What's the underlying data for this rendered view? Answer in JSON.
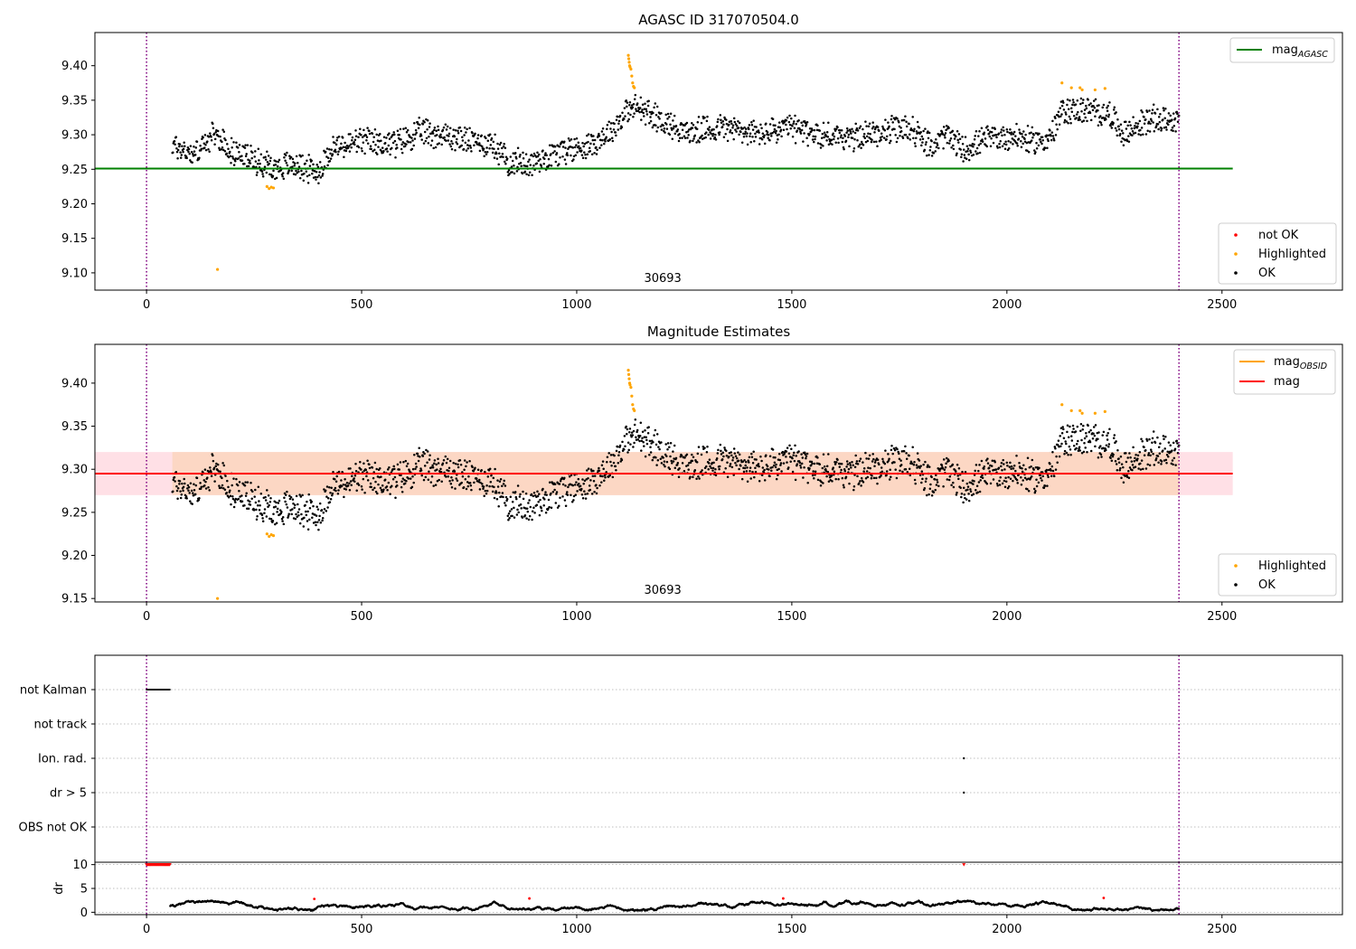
{
  "chart_data": [
    {
      "type": "scatter",
      "title": "AGASC ID 317070504.0",
      "xlim": [
        -120,
        2780
      ],
      "ylim": [
        9.075,
        9.448
      ],
      "xticks": [
        0,
        500,
        1000,
        1500,
        2000,
        2500
      ],
      "yticks": [
        9.1,
        9.15,
        9.2,
        9.25,
        9.3,
        9.35,
        9.4
      ],
      "ytick_labels": [
        "9.10",
        "9.15",
        "9.20",
        "9.25",
        "9.30",
        "9.35",
        "9.40"
      ],
      "obsid_label": {
        "text": "30693",
        "x": 1200
      },
      "vlines": [
        0,
        2400
      ],
      "hline": {
        "name": "mag",
        "subscript": "AGASC",
        "value": 9.251,
        "xrange": [
          -120,
          2525
        ],
        "color": "#008000"
      },
      "band": null,
      "legend_lines": [
        {
          "name": "mag",
          "subscript": "AGASC",
          "color": "#008000"
        }
      ],
      "legend_points": [
        {
          "name": "not OK",
          "color": "#ff0000"
        },
        {
          "name": "Highlighted",
          "color": "#ffa500"
        },
        {
          "name": "OK",
          "color": "#000000"
        }
      ],
      "series": [
        {
          "name": "OK",
          "color": "#000000",
          "x_range": [
            60,
            2400
          ],
          "segments": [
            [
              60,
              9.285
            ],
            [
              110,
              9.272
            ],
            [
              160,
              9.3
            ],
            [
              200,
              9.275
            ],
            [
              260,
              9.262
            ],
            [
              300,
              9.252
            ],
            [
              340,
              9.258
            ],
            [
              400,
              9.246
            ],
            [
              430,
              9.28
            ],
            [
              500,
              9.29
            ],
            [
              580,
              9.287
            ],
            [
              640,
              9.305
            ],
            [
              700,
              9.298
            ],
            [
              760,
              9.29
            ],
            [
              800,
              9.288
            ],
            [
              840,
              9.262
            ],
            [
              890,
              9.258
            ],
            [
              960,
              9.276
            ],
            [
              1030,
              9.285
            ],
            [
              1080,
              9.305
            ],
            [
              1110,
              9.33
            ],
            [
              1140,
              9.34
            ],
            [
              1200,
              9.32
            ],
            [
              1260,
              9.302
            ],
            [
              1340,
              9.312
            ],
            [
              1420,
              9.3
            ],
            [
              1500,
              9.31
            ],
            [
              1560,
              9.3
            ],
            [
              1640,
              9.296
            ],
            [
              1720,
              9.305
            ],
            [
              1780,
              9.31
            ],
            [
              1820,
              9.282
            ],
            [
              1860,
              9.3
            ],
            [
              1900,
              9.278
            ],
            [
              1960,
              9.295
            ],
            [
              2020,
              9.298
            ],
            [
              2060,
              9.29
            ],
            [
              2100,
              9.295
            ],
            [
              2130,
              9.335
            ],
            [
              2180,
              9.335
            ],
            [
              2240,
              9.33
            ],
            [
              2270,
              9.3
            ],
            [
              2330,
              9.322
            ],
            [
              2400,
              9.322
            ]
          ]
        },
        {
          "name": "Highlighted",
          "color": "#ffa500",
          "points": [
            [
              1120,
              9.415
            ],
            [
              1121,
              9.41
            ],
            [
              1122,
              9.405
            ],
            [
              1123,
              9.4
            ],
            [
              1124,
              9.398
            ],
            [
              1126,
              9.395
            ],
            [
              1128,
              9.385
            ],
            [
              1130,
              9.375
            ],
            [
              1132,
              9.37
            ],
            [
              1134,
              9.368
            ],
            [
              280,
              9.225
            ],
            [
              285,
              9.222
            ],
            [
              290,
              9.224
            ],
            [
              295,
              9.223
            ],
            [
              2128,
              9.375
            ],
            [
              2150,
              9.368
            ],
            [
              2170,
              9.368
            ],
            [
              2175,
              9.365
            ],
            [
              2205,
              9.365
            ],
            [
              2228,
              9.367
            ],
            [
              165,
              9.105
            ]
          ]
        }
      ]
    },
    {
      "type": "scatter",
      "title": "Magnitude Estimates",
      "xlim": [
        -120,
        2780
      ],
      "ylim": [
        9.146,
        9.445
      ],
      "xticks": [
        0,
        500,
        1000,
        1500,
        2000,
        2500
      ],
      "yticks": [
        9.15,
        9.2,
        9.25,
        9.3,
        9.35,
        9.4
      ],
      "ytick_labels": [
        "9.15",
        "9.20",
        "9.25",
        "9.30",
        "9.35",
        "9.40"
      ],
      "obsid_label": {
        "text": "30693",
        "x": 1200
      },
      "vlines": [
        0,
        2400
      ],
      "hline": {
        "name": "mag",
        "value": 9.295,
        "xrange": [
          -120,
          2525
        ],
        "color": "#ff0000"
      },
      "band": {
        "y0": 9.27,
        "y1": 9.32,
        "xrange": [
          -120,
          2525
        ],
        "inner_xrange": [
          60,
          2400
        ]
      },
      "legend_lines": [
        {
          "name": "mag",
          "subscript": "OBSID",
          "color": "#ffa500"
        },
        {
          "name": "mag",
          "color": "#ff0000"
        }
      ],
      "legend_points": [
        {
          "name": "Highlighted",
          "color": "#ffa500"
        },
        {
          "name": "OK",
          "color": "#000000"
        }
      ],
      "series": [
        {
          "name": "OK",
          "color": "#000000",
          "x_range": [
            60,
            2400
          ],
          "segments": [
            [
              60,
              9.285
            ],
            [
              110,
              9.272
            ],
            [
              160,
              9.3
            ],
            [
              200,
              9.275
            ],
            [
              260,
              9.262
            ],
            [
              300,
              9.252
            ],
            [
              340,
              9.258
            ],
            [
              400,
              9.246
            ],
            [
              430,
              9.28
            ],
            [
              500,
              9.29
            ],
            [
              580,
              9.287
            ],
            [
              640,
              9.305
            ],
            [
              700,
              9.298
            ],
            [
              760,
              9.29
            ],
            [
              800,
              9.288
            ],
            [
              840,
              9.262
            ],
            [
              890,
              9.258
            ],
            [
              960,
              9.276
            ],
            [
              1030,
              9.285
            ],
            [
              1080,
              9.305
            ],
            [
              1110,
              9.33
            ],
            [
              1140,
              9.34
            ],
            [
              1200,
              9.32
            ],
            [
              1260,
              9.302
            ],
            [
              1340,
              9.312
            ],
            [
              1420,
              9.3
            ],
            [
              1500,
              9.31
            ],
            [
              1560,
              9.3
            ],
            [
              1640,
              9.296
            ],
            [
              1720,
              9.305
            ],
            [
              1780,
              9.31
            ],
            [
              1820,
              9.282
            ],
            [
              1860,
              9.3
            ],
            [
              1900,
              9.278
            ],
            [
              1960,
              9.295
            ],
            [
              2020,
              9.298
            ],
            [
              2060,
              9.29
            ],
            [
              2100,
              9.295
            ],
            [
              2130,
              9.335
            ],
            [
              2180,
              9.335
            ],
            [
              2240,
              9.33
            ],
            [
              2270,
              9.3
            ],
            [
              2330,
              9.322
            ],
            [
              2400,
              9.322
            ]
          ]
        },
        {
          "name": "Highlighted",
          "color": "#ffa500",
          "points": [
            [
              1120,
              9.415
            ],
            [
              1121,
              9.41
            ],
            [
              1122,
              9.405
            ],
            [
              1123,
              9.4
            ],
            [
              1124,
              9.398
            ],
            [
              1126,
              9.395
            ],
            [
              1128,
              9.385
            ],
            [
              1130,
              9.375
            ],
            [
              1132,
              9.37
            ],
            [
              1134,
              9.368
            ],
            [
              280,
              9.225
            ],
            [
              285,
              9.222
            ],
            [
              290,
              9.224
            ],
            [
              295,
              9.223
            ],
            [
              2128,
              9.375
            ],
            [
              2150,
              9.368
            ],
            [
              2170,
              9.368
            ],
            [
              2175,
              9.365
            ],
            [
              2205,
              9.365
            ],
            [
              2228,
              9.367
            ],
            [
              165,
              9.15
            ]
          ]
        }
      ]
    },
    {
      "type": "scatter",
      "xlim": [
        -120,
        2780
      ],
      "xticks": [
        0,
        500,
        1000,
        1500,
        2000,
        2500
      ],
      "vlines": [
        0,
        2400
      ],
      "flag_rows": [
        "not Kalman",
        "not track",
        "Ion. rad.",
        "dr > 5",
        "OBS not OK"
      ],
      "flags": [
        {
          "row": "not Kalman",
          "x_range": [
            0,
            55
          ]
        },
        {
          "row": "Ion. rad.",
          "x": 1900
        },
        {
          "row": "dr > 5",
          "x": 1900
        }
      ]
    },
    {
      "type": "scatter",
      "ylabel": "dr",
      "xlim": [
        -120,
        2780
      ],
      "ylim": [
        -0.5,
        10.5
      ],
      "xticks": [
        0,
        500,
        1000,
        1500,
        2000,
        2500
      ],
      "yticks": [
        0,
        5,
        10
      ],
      "vlines": [
        0,
        2400
      ],
      "series": [
        {
          "name": "OK",
          "color": "#000000",
          "x_range": [
            55,
            2400
          ],
          "y_range": [
            0.3,
            2.5
          ]
        },
        {
          "name": "not OK",
          "color": "#ff0000",
          "capped": [
            [
              0,
              55,
              10
            ],
            [
              1900,
              1900,
              10
            ]
          ],
          "points": [
            [
              390,
              2.8
            ],
            [
              890,
              2.9
            ],
            [
              1480,
              2.9
            ],
            [
              2225,
              3.0
            ]
          ]
        }
      ]
    }
  ]
}
